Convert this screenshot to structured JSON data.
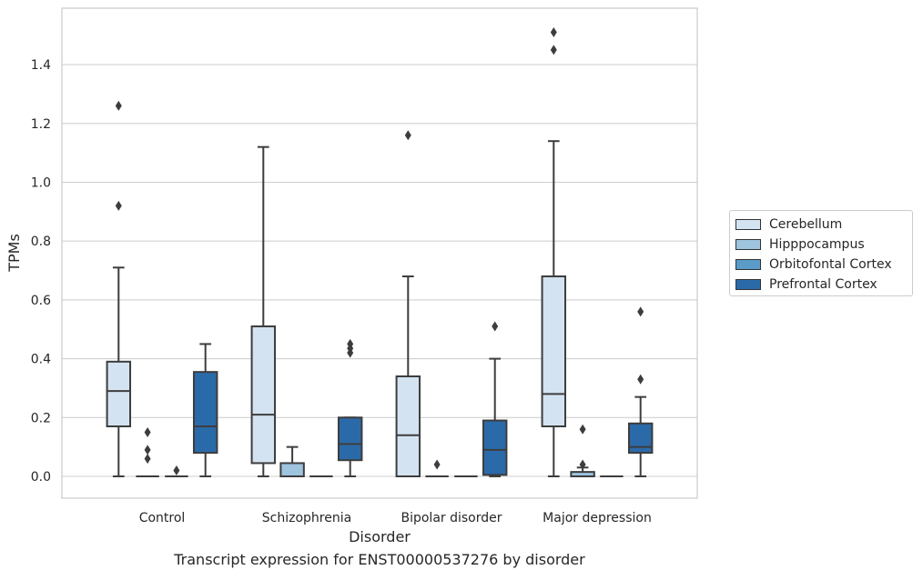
{
  "caption": "Transcript expression for ENST00000537276 by disorder",
  "chart_data": {
    "type": "boxplot",
    "xlabel": "Disorder",
    "ylabel": "TPMs",
    "ylim": [
      -0.075,
      1.58
    ],
    "yticks": [
      "0.0",
      "0.2",
      "0.4",
      "0.6",
      "0.8",
      "1.0",
      "1.2",
      "1.4"
    ],
    "grid": true,
    "legend_position": "right",
    "categories": [
      "Control",
      "Schizophrenia",
      "Bipolar disorder",
      "Major depression"
    ],
    "series": [
      {
        "name": "Cerebellum",
        "color": "#d4e3f1",
        "boxes": [
          {
            "whislo": 0.0,
            "q1": 0.17,
            "med": 0.29,
            "q3": 0.39,
            "whishi": 0.71,
            "fliers": [
              0.92,
              1.26
            ]
          },
          {
            "whislo": 0.0,
            "q1": 0.045,
            "med": 0.21,
            "q3": 0.51,
            "whishi": 1.12,
            "fliers": []
          },
          {
            "whislo": 0.0,
            "q1": 0.0,
            "med": 0.14,
            "q3": 0.34,
            "whishi": 0.68,
            "fliers": [
              1.16
            ]
          },
          {
            "whislo": 0.0,
            "q1": 0.17,
            "med": 0.28,
            "q3": 0.68,
            "whishi": 1.14,
            "fliers": [
              1.45,
              1.51
            ]
          }
        ]
      },
      {
        "name": "Hipppocampus",
        "color": "#9ec4de",
        "boxes": [
          {
            "whislo": 0.0,
            "q1": 0.0,
            "med": 0.0,
            "q3": 0.0,
            "whishi": 0.0,
            "fliers": [
              0.06,
              0.09,
              0.15
            ]
          },
          {
            "whislo": 0.0,
            "q1": 0.0,
            "med": 0.0,
            "q3": 0.045,
            "whishi": 0.1,
            "fliers": []
          },
          {
            "whislo": 0.0,
            "q1": 0.0,
            "med": 0.0,
            "q3": 0.0,
            "whishi": 0.0,
            "fliers": [
              0.04
            ]
          },
          {
            "whislo": 0.0,
            "q1": 0.0,
            "med": 0.0,
            "q3": 0.015,
            "whishi": 0.03,
            "fliers": [
              0.04,
              0.16
            ]
          }
        ]
      },
      {
        "name": "Orbitofontal Cortex",
        "color": "#5a9bc8",
        "boxes": [
          {
            "whislo": 0.0,
            "q1": 0.0,
            "med": 0.0,
            "q3": 0.0,
            "whishi": 0.0,
            "fliers": [
              0.02
            ]
          },
          {
            "whislo": 0.0,
            "q1": 0.0,
            "med": 0.0,
            "q3": 0.0,
            "whishi": 0.0,
            "fliers": []
          },
          {
            "whislo": 0.0,
            "q1": 0.0,
            "med": 0.0,
            "q3": 0.0,
            "whishi": 0.0,
            "fliers": []
          },
          {
            "whislo": 0.0,
            "q1": 0.0,
            "med": 0.0,
            "q3": 0.0,
            "whishi": 0.0,
            "fliers": []
          }
        ]
      },
      {
        "name": "Prefrontal Cortex",
        "color": "#2b6aa9",
        "boxes": [
          {
            "whislo": 0.0,
            "q1": 0.08,
            "med": 0.17,
            "q3": 0.355,
            "whishi": 0.45,
            "fliers": []
          },
          {
            "whislo": 0.0,
            "q1": 0.055,
            "med": 0.11,
            "q3": 0.2,
            "whishi": 0.2,
            "fliers": [
              0.42,
              0.435,
              0.45
            ]
          },
          {
            "whislo": 0.0,
            "q1": 0.005,
            "med": 0.09,
            "q3": 0.19,
            "whishi": 0.4,
            "fliers": [
              0.51
            ]
          },
          {
            "whislo": 0.0,
            "q1": 0.08,
            "med": 0.1,
            "q3": 0.18,
            "whishi": 0.27,
            "fliers": [
              0.33,
              0.56
            ]
          }
        ]
      }
    ]
  }
}
